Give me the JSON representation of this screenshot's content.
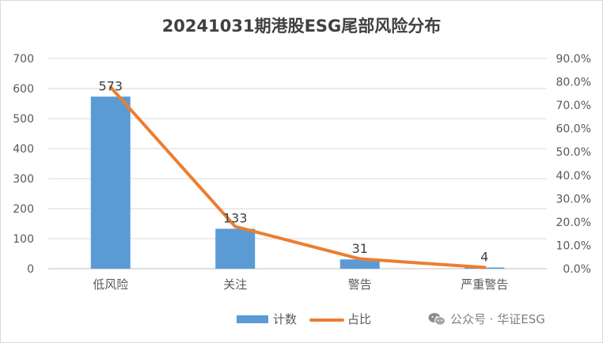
{
  "chart_data": {
    "type": "bar",
    "title": "20241031期港股ESG尾部风险分布",
    "categories": [
      "低风险",
      "关注",
      "警告",
      "严重警告"
    ],
    "series": [
      {
        "name": "计数",
        "type": "bar",
        "axis": "left",
        "values": [
          573,
          133,
          31,
          4
        ],
        "color": "#5b9bd5"
      },
      {
        "name": "占比",
        "type": "line",
        "axis": "right",
        "values": [
          0.7772,
          0.1805,
          0.0421,
          0.0054
        ],
        "color": "#ed7d31"
      }
    ],
    "data_labels": [
      "573",
      "133",
      "31",
      "4"
    ],
    "ylim": [
      0,
      700
    ],
    "yticks": [
      "0",
      "100",
      "200",
      "300",
      "400",
      "500",
      "600",
      "700"
    ],
    "y2lim": [
      0,
      0.9
    ],
    "y2ticks": [
      "0.0%",
      "10.0%",
      "20.0%",
      "30.0%",
      "40.0%",
      "50.0%",
      "60.0%",
      "70.0%",
      "80.0%",
      "90.0%"
    ],
    "grid": true,
    "legend_position": "bottom"
  },
  "watermark": {
    "text": "公众号 · 华证ESG"
  }
}
